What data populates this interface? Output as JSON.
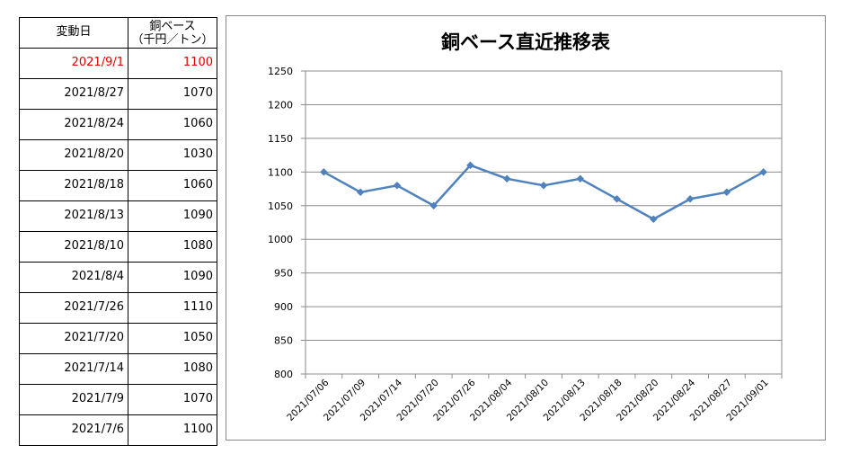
{
  "table": {
    "header": {
      "date": "変動日",
      "value_line1": "銅ベース",
      "value_line2": "（千円／トン）"
    },
    "rows": [
      {
        "date": "2021/9/1",
        "value": "1100"
      },
      {
        "date": "2021/8/27",
        "value": "1070"
      },
      {
        "date": "2021/8/24",
        "value": "1060"
      },
      {
        "date": "2021/8/20",
        "value": "1030"
      },
      {
        "date": "2021/8/18",
        "value": "1060"
      },
      {
        "date": "2021/8/13",
        "value": "1090"
      },
      {
        "date": "2021/8/10",
        "value": "1080"
      },
      {
        "date": "2021/8/4",
        "value": "1090"
      },
      {
        "date": "2021/7/26",
        "value": "1110"
      },
      {
        "date": "2021/7/20",
        "value": "1050"
      },
      {
        "date": "2021/7/14",
        "value": "1080"
      },
      {
        "date": "2021/7/9",
        "value": "1070"
      },
      {
        "date": "2021/7/6",
        "value": "1100"
      }
    ],
    "highlight_color": "#e00000"
  },
  "chart_data": {
    "type": "line",
    "title": "銅ベース直近推移表",
    "xlabel": "",
    "ylabel": "",
    "categories": [
      "2021/07/06",
      "2021/07/09",
      "2021/07/14",
      "2021/07/20",
      "2021/07/26",
      "2021/08/04",
      "2021/08/10",
      "2021/08/13",
      "2021/08/18",
      "2021/08/20",
      "2021/08/24",
      "2021/08/27",
      "2021/09/01"
    ],
    "series": [
      {
        "values": [
          1100,
          1070,
          1080,
          1050,
          1110,
          1090,
          1080,
          1090,
          1060,
          1030,
          1060,
          1070,
          1100
        ],
        "color": "#4f81bd"
      }
    ],
    "ylim": [
      800,
      1250
    ],
    "yticks": [
      800,
      850,
      900,
      950,
      1000,
      1050,
      1100,
      1150,
      1200,
      1250
    ],
    "grid": true,
    "legend": "none"
  }
}
